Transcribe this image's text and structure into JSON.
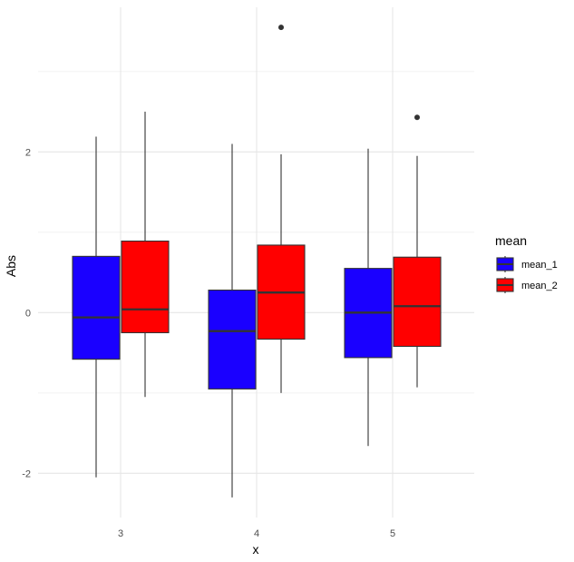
{
  "chart_data": {
    "type": "boxplot",
    "title": "",
    "xlabel": "x",
    "ylabel": "Abs",
    "ylim": [
      -2.55,
      3.8
    ],
    "y_ticks": [
      -2,
      0,
      2
    ],
    "y_tick_labels": [
      "-2",
      "0",
      "2"
    ],
    "categories": [
      "3",
      "4",
      "5"
    ],
    "grid": true,
    "legend": {
      "title": "mean",
      "position": "right"
    },
    "series": [
      {
        "name": "mean_1",
        "color": "#1a00ff",
        "boxes": [
          {
            "category": "3",
            "whisker_low": -2.05,
            "q1": -0.58,
            "median": -0.06,
            "q3": 0.7,
            "whisker_high": 2.19,
            "outliers": []
          },
          {
            "category": "4",
            "whisker_low": -2.3,
            "q1": -0.95,
            "median": -0.23,
            "q3": 0.28,
            "whisker_high": 2.1,
            "outliers": []
          },
          {
            "category": "5",
            "whisker_low": -1.66,
            "q1": -0.56,
            "median": 0.0,
            "q3": 0.55,
            "whisker_high": 2.04,
            "outliers": []
          }
        ]
      },
      {
        "name": "mean_2",
        "color": "#ff0000",
        "boxes": [
          {
            "category": "3",
            "whisker_low": -1.05,
            "q1": -0.25,
            "median": 0.04,
            "q3": 0.89,
            "whisker_high": 2.5,
            "outliers": []
          },
          {
            "category": "4",
            "whisker_low": -1.0,
            "q1": -0.33,
            "median": 0.25,
            "q3": 0.84,
            "whisker_high": 1.97,
            "outliers": [
              3.55
            ]
          },
          {
            "category": "5",
            "whisker_low": -0.93,
            "q1": -0.42,
            "median": 0.08,
            "q3": 0.69,
            "whisker_high": 1.95,
            "outliers": [
              2.43
            ]
          }
        ]
      }
    ]
  }
}
